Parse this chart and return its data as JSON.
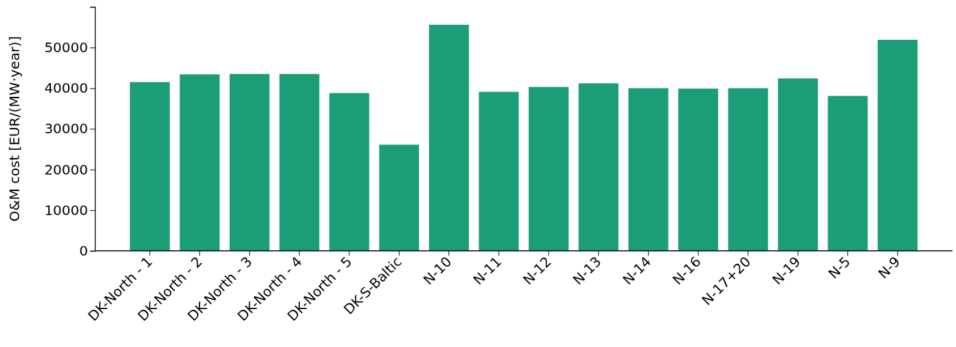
{
  "chart_data": {
    "type": "bar",
    "ylabel": "O&M cost [EUR/(MW·year)]",
    "categories": [
      "DK-North - 1",
      "DK-North - 2",
      "DK-North - 3",
      "DK-North - 4",
      "DK-North - 5",
      "DK-S-Baltic",
      "N-10",
      "N-11",
      "N-12",
      "N-13",
      "N-14",
      "N-16",
      "N-17+20",
      "N-19",
      "N-5",
      "N-9"
    ],
    "values": [
      41500,
      43400,
      43500,
      43500,
      38800,
      26100,
      55600,
      39100,
      40300,
      41200,
      40000,
      39900,
      40000,
      42400,
      38100,
      51900
    ],
    "color": "#1b9e77",
    "ylim": [
      0,
      60000
    ],
    "yticks": [
      0,
      10000,
      20000,
      30000,
      40000,
      50000
    ]
  }
}
